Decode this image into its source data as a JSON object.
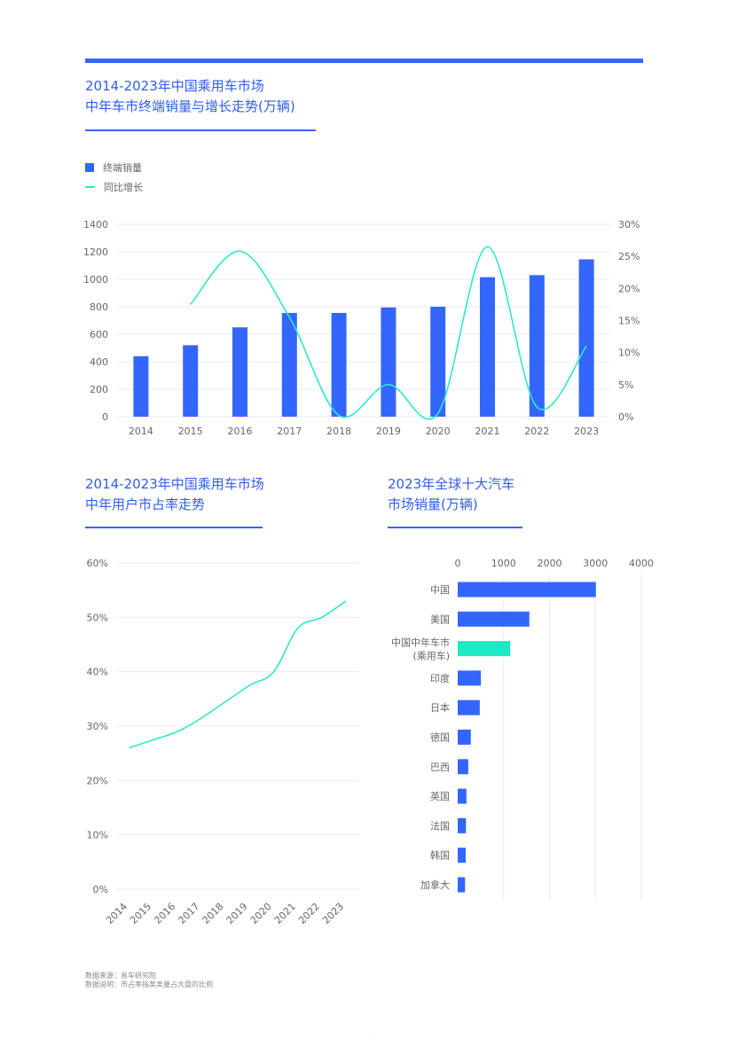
{
  "chart_data": [
    {
      "type": "bar",
      "title": "2014-2023年中国乘用车市场",
      "subtitle": "中年车市终端销量与增长走势(万辆)",
      "categories": [
        "2014",
        "2015",
        "2016",
        "2017",
        "2018",
        "2019",
        "2020",
        "2021",
        "2022",
        "2023"
      ],
      "series": [
        {
          "name": "终端销量",
          "type": "bar",
          "color": "#3366ff",
          "axis": "left",
          "values": [
            440,
            520,
            650,
            755,
            755,
            795,
            800,
            1015,
            1030,
            1145
          ]
        },
        {
          "name": "同比增长",
          "type": "line",
          "color": "#2ee8c8",
          "axis": "right",
          "values": [
            null,
            17.5,
            25.8,
            15.5,
            0.2,
            5.0,
            0.5,
            26.5,
            1.5,
            11.0
          ]
        }
      ],
      "ylim": [
        0,
        1400
      ],
      "yticks": [
        "0",
        "200",
        "400",
        "600",
        "800",
        "1000",
        "1200",
        "1400"
      ],
      "y2lim": [
        0,
        30
      ],
      "y2ticks": [
        "0%",
        "5%",
        "10%",
        "15%",
        "20%",
        "25%",
        "30%"
      ],
      "grid": true,
      "legend": "top-left"
    },
    {
      "type": "line",
      "title": "2014-2023年中国乘用车市场",
      "subtitle": "中年用户市占率走势",
      "categories": [
        "2014",
        "2015",
        "2016",
        "2017",
        "2018",
        "2019",
        "2020",
        "2021",
        "2022",
        "2023"
      ],
      "series": [
        {
          "color": "#2ee8c8",
          "values": [
            26,
            27.5,
            29,
            31.5,
            34.5,
            37.5,
            40,
            48,
            50,
            53
          ]
        }
      ],
      "ylim": [
        0,
        60
      ],
      "yticks": [
        "0%",
        "10%",
        "20%",
        "30%",
        "40%",
        "50%",
        "60%"
      ],
      "grid": true
    },
    {
      "type": "bar",
      "orientation": "horizontal",
      "title": "2023年全球十大汽车",
      "subtitle": "市场销量(万辆)",
      "categories": [
        "中国",
        "美国",
        "中国中年车市\n(乘用车)",
        "印度",
        "日本",
        "德国",
        "巴西",
        "英国",
        "法国",
        "韩国",
        "加拿大"
      ],
      "values": [
        3010,
        1560,
        1145,
        505,
        480,
        285,
        230,
        190,
        180,
        175,
        160
      ],
      "colors": [
        "#3366ff",
        "#3366ff",
        "#1de9c4",
        "#3366ff",
        "#3366ff",
        "#3366ff",
        "#3366ff",
        "#3366ff",
        "#3366ff",
        "#3366ff",
        "#3366ff"
      ],
      "xlim": [
        0,
        4000
      ],
      "xticks": [
        "0",
        "1000",
        "2000",
        "3000",
        "4000"
      ],
      "grid": true
    }
  ],
  "footer": {
    "source": "数据来源：易车研究院",
    "note": "数据说明：市占率指某类量占大盘的比例"
  }
}
